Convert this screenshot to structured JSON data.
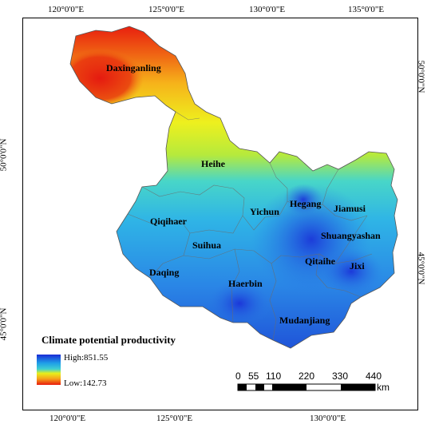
{
  "graticule": {
    "top": [
      "120°0'0\"E",
      "125°0'0\"E",
      "130°0'0\"E",
      "135°0'0\"E"
    ],
    "bottom": [
      "120°0'0\"E",
      "125°0'0\"E",
      "130°0'0\"E"
    ],
    "left": [
      "50°0'0\"N",
      "45°0'0\"N"
    ],
    "right": [
      "50°0'0\"N",
      "45°0'0\"N"
    ]
  },
  "cities": [
    "Daxinganling",
    "Heihe",
    "Qiqihaer",
    "Yichun",
    "Hegang",
    "Jiamusi",
    "Suihua",
    "Shuangyashan",
    "Daqing",
    "Qitaihe",
    "Jixi",
    "Haerbin",
    "Mudanjiang"
  ],
  "legend": {
    "title": "Climate potential productivity",
    "high_label": "High:851.55",
    "low_label": "Low:142.73",
    "colors": [
      "#1a2bd6",
      "#1e9ee8",
      "#3fd0d0",
      "#e8ef1a",
      "#f6a21a",
      "#e81a0e"
    ]
  },
  "scale_bar": {
    "labels": [
      "0",
      "55",
      "110",
      "220",
      "330",
      "440"
    ],
    "unit": "km"
  }
}
